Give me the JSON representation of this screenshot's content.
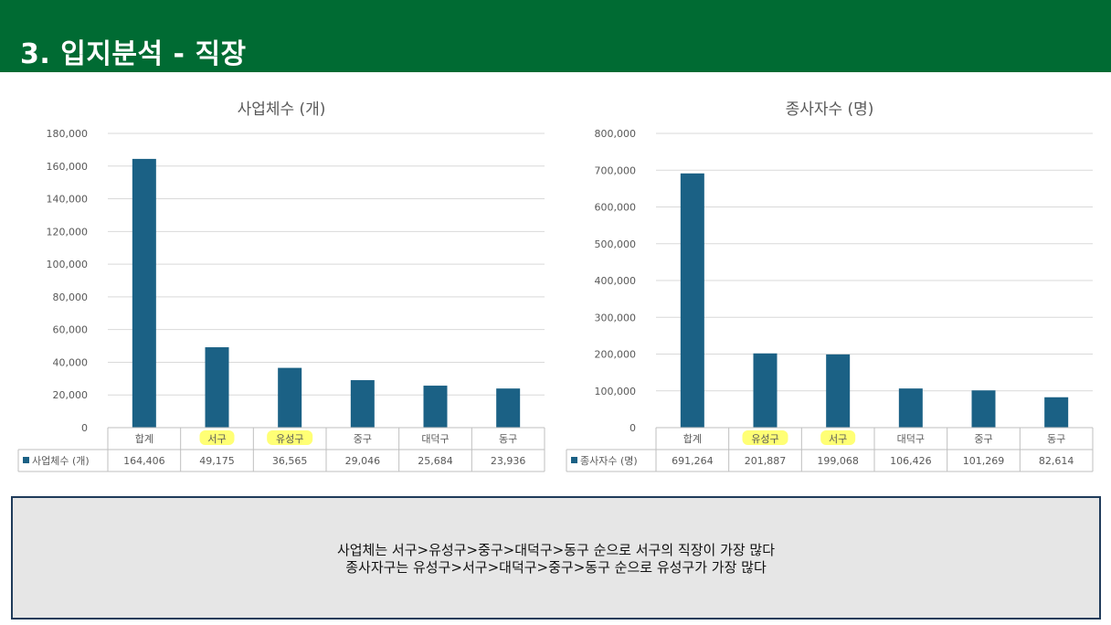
{
  "header": {
    "title": "3. 입지분석 - 직장"
  },
  "summary": {
    "lines": [
      "사업체는 서구>유성구>중구>대덕구>동구  순으로 서구의 직장이 가장 많다",
      "종사자구는 유성구>서구>대덕구>중구>동구  순으로 유성구가 가장 많다"
    ]
  },
  "colors": {
    "header_bg": "#006b33",
    "bar": "#1b6185",
    "highlight": "#ffff66",
    "box_bg": "#e6e6e6",
    "box_border": "#1f3b5a"
  },
  "chart_data": [
    {
      "type": "bar",
      "title": "사업체수 (개)",
      "categories": [
        "합계",
        "서구",
        "유성구",
        "중구",
        "대덕구",
        "동구"
      ],
      "highlighted_categories": [
        "서구",
        "유성구"
      ],
      "series": [
        {
          "name": "사업체수 (개)",
          "values": [
            164406,
            49175,
            36565,
            29046,
            25684,
            23936
          ]
        }
      ],
      "table_values": [
        "164,406",
        "49,175",
        "36,565",
        "29,046",
        "25,684",
        "23,936"
      ],
      "ylim": [
        0,
        180000
      ],
      "yticks": [
        0,
        20000,
        40000,
        60000,
        80000,
        100000,
        120000,
        140000,
        160000,
        180000
      ],
      "ytick_labels": [
        "0",
        "20,000",
        "40,000",
        "60,000",
        "80,000",
        "100,000",
        "120,000",
        "140,000",
        "160,000",
        "180,000"
      ],
      "grid": true,
      "legend": "data table"
    },
    {
      "type": "bar",
      "title": "종사자수 (명)",
      "categories": [
        "합계",
        "유성구",
        "서구",
        "대덕구",
        "중구",
        "동구"
      ],
      "highlighted_categories": [
        "유성구",
        "서구"
      ],
      "series": [
        {
          "name": "종사자수 (명)",
          "values": [
            691264,
            201887,
            199068,
            106426,
            101269,
            82614
          ]
        }
      ],
      "table_values": [
        "691,264",
        "201,887",
        "199,068",
        "106,426",
        "101,269",
        "82,614"
      ],
      "ylim": [
        0,
        800000
      ],
      "yticks": [
        0,
        100000,
        200000,
        300000,
        400000,
        500000,
        600000,
        700000,
        800000
      ],
      "ytick_labels": [
        "0",
        "100,000",
        "200,000",
        "300,000",
        "400,000",
        "500,000",
        "600,000",
        "700,000",
        "800,000"
      ],
      "grid": true,
      "legend": "data table"
    }
  ]
}
